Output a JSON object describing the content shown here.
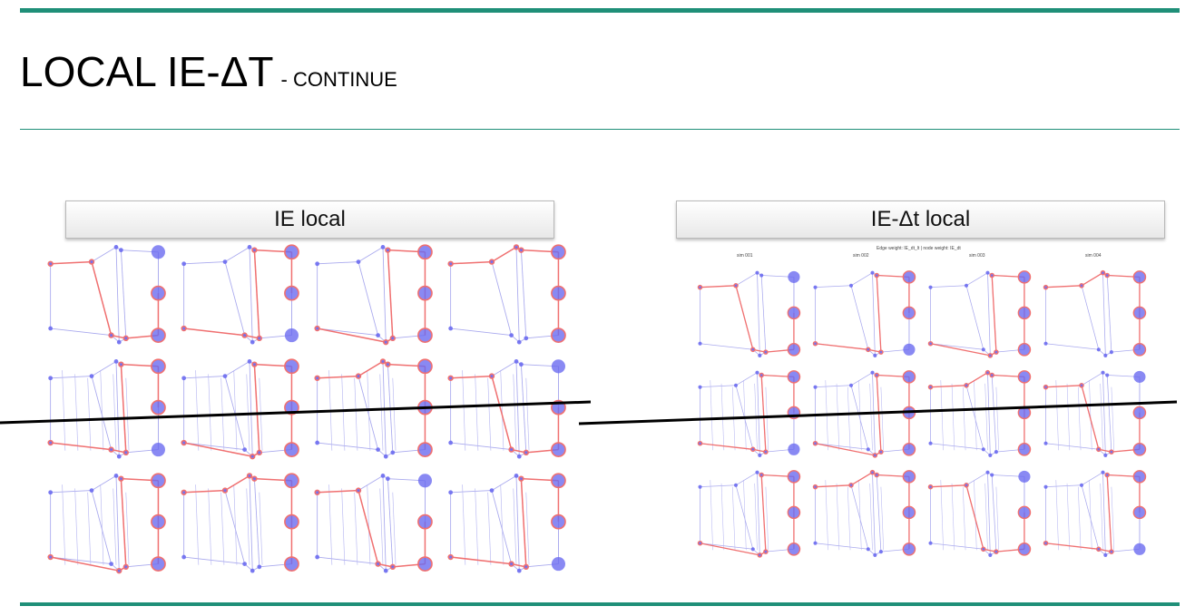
{
  "slide": {
    "title": "LOCAL IE-ΔT",
    "subtitle": "- CONTINUE"
  },
  "panels": {
    "left": {
      "label": "IE local"
    },
    "right": {
      "label": "IE-Δt  local",
      "caption": "Edge weight: IE_dt_lt | node weight: IE_dt",
      "column_titles": [
        "sim 001",
        "sim 002",
        "sim 003",
        "sim 004"
      ]
    }
  },
  "colors": {
    "accent": "#1f8f78",
    "node": "#6b6bf0",
    "highlight": "#f07070"
  }
}
